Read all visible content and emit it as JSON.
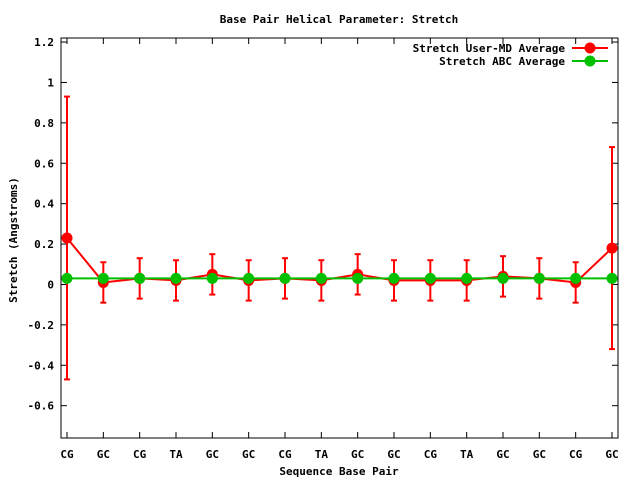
{
  "chart_data": {
    "type": "line",
    "title": "Base Pair Helical Parameter: Stretch",
    "xlabel": "Sequence Base Pair",
    "ylabel": "Stretch (Angstroms)",
    "categories": [
      "CG",
      "GC",
      "CG",
      "TA",
      "GC",
      "GC",
      "CG",
      "TA",
      "GC",
      "GC",
      "CG",
      "TA",
      "GC",
      "GC",
      "CG",
      "GC"
    ],
    "ylim": [
      -0.76,
      1.22
    ],
    "yticks": [
      -0.6,
      -0.4,
      -0.2,
      0,
      0.2,
      0.4,
      0.6,
      0.8,
      1,
      1.2
    ],
    "ytick_labels": [
      "-0.6",
      "-0.4",
      "-0.2",
      "0",
      "0.2",
      "0.4",
      "0.6",
      "0.8",
      "1",
      "1.2"
    ],
    "grid": false,
    "legend_position": "top-right",
    "series": [
      {
        "name": "Stretch User-MD Average",
        "color": "#ff0000",
        "values": [
          0.23,
          0.01,
          0.03,
          0.02,
          0.05,
          0.02,
          0.03,
          0.02,
          0.05,
          0.02,
          0.02,
          0.02,
          0.04,
          0.03,
          0.01,
          0.18
        ],
        "error_low": [
          -0.47,
          -0.09,
          -0.07,
          -0.08,
          -0.05,
          -0.08,
          -0.07,
          -0.08,
          -0.05,
          -0.08,
          -0.08,
          -0.08,
          -0.06,
          -0.07,
          -0.09,
          -0.32
        ],
        "error_high": [
          0.93,
          0.11,
          0.13,
          0.12,
          0.15,
          0.12,
          0.13,
          0.12,
          0.15,
          0.12,
          0.12,
          0.12,
          0.14,
          0.13,
          0.11,
          0.68
        ]
      },
      {
        "name": "Stretch ABC Average",
        "color": "#00c000",
        "values": [
          0.03,
          0.03,
          0.03,
          0.03,
          0.03,
          0.03,
          0.03,
          0.03,
          0.03,
          0.03,
          0.03,
          0.03,
          0.03,
          0.03,
          0.03,
          0.03
        ]
      }
    ]
  }
}
